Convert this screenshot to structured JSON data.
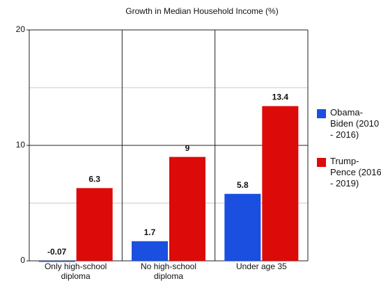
{
  "chart_data": {
    "type": "bar",
    "title": "Growth in Median Household Income (%)",
    "categories": [
      "Only high-school diploma",
      "No high-school diploma",
      "Under age 35"
    ],
    "series": [
      {
        "name": "Obama-Biden (2010 - 2016)",
        "color": "#1a4fe0",
        "values": [
          -0.07,
          1.7,
          5.8
        ]
      },
      {
        "name": "Trump-Pence (2016 - 2019)",
        "color": "#dd0a0a",
        "values": [
          6.3,
          9,
          13.4
        ]
      }
    ],
    "ylim": [
      0,
      20
    ],
    "yticks": [
      0,
      10,
      20
    ],
    "minor_yticks": [
      5,
      15
    ],
    "grid": true,
    "legend": "right"
  }
}
